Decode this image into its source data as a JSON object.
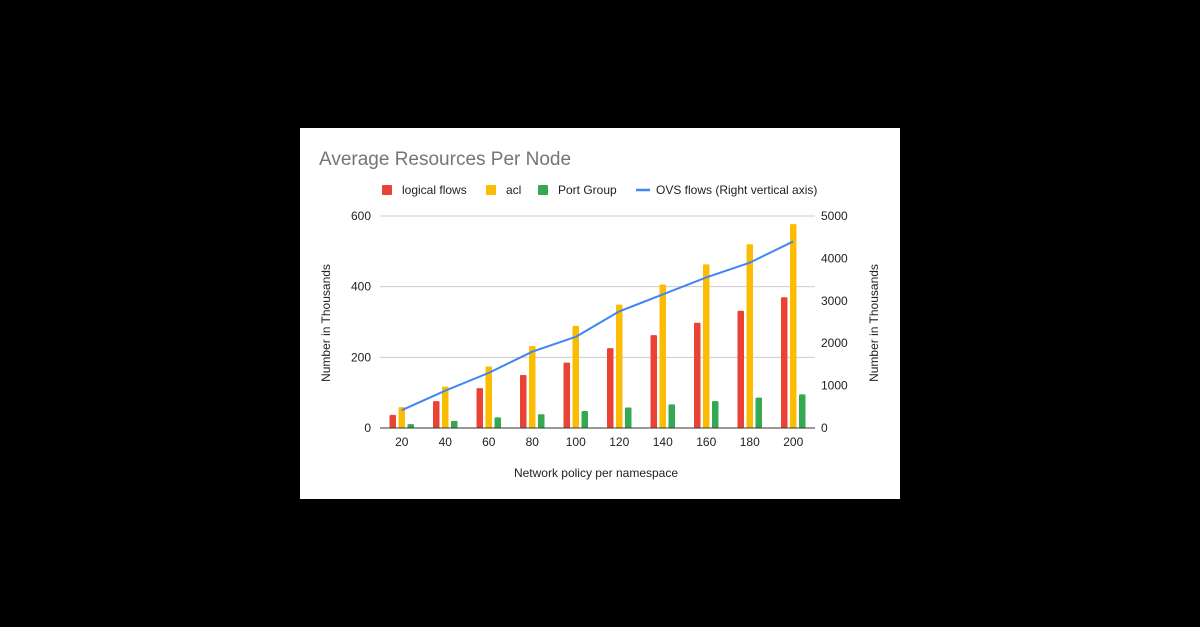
{
  "chart_data": {
    "type": "bar",
    "title": "Average Resources Per Node",
    "xlabel": "Network policy per namespace",
    "ylabel": "Number in Thousands",
    "y2label": "Number in Thousands",
    "categories": [
      "20",
      "40",
      "60",
      "80",
      "100",
      "120",
      "140",
      "160",
      "180",
      "200"
    ],
    "ylim": [
      0,
      600
    ],
    "y2lim": [
      0,
      5000
    ],
    "yticks": [
      "0",
      "200",
      "400",
      "600"
    ],
    "y2ticks": [
      "0",
      "1000",
      "2000",
      "3000",
      "4000",
      "5000"
    ],
    "grid": true,
    "legend_position": "top",
    "series": [
      {
        "name": "logical flows",
        "type": "bar",
        "axis": "left",
        "color": "#ea4335",
        "values": [
          37,
          76,
          113,
          150,
          185,
          226,
          263,
          298,
          332,
          370
        ]
      },
      {
        "name": "acl",
        "type": "bar",
        "axis": "left",
        "color": "#fbbc04",
        "values": [
          59,
          117,
          174,
          232,
          289,
          349,
          406,
          463,
          520,
          577
        ]
      },
      {
        "name": "Port Group",
        "type": "bar",
        "axis": "left",
        "color": "#34a853",
        "values": [
          11,
          20,
          30,
          39,
          48,
          58,
          67,
          76,
          86,
          95
        ]
      },
      {
        "name": "OVS flows (Right vertical axis)",
        "type": "line",
        "axis": "right",
        "color": "#4285f4",
        "values": [
          420,
          880,
          1300,
          1800,
          2150,
          2750,
          3150,
          3550,
          3900,
          4400
        ]
      }
    ]
  }
}
